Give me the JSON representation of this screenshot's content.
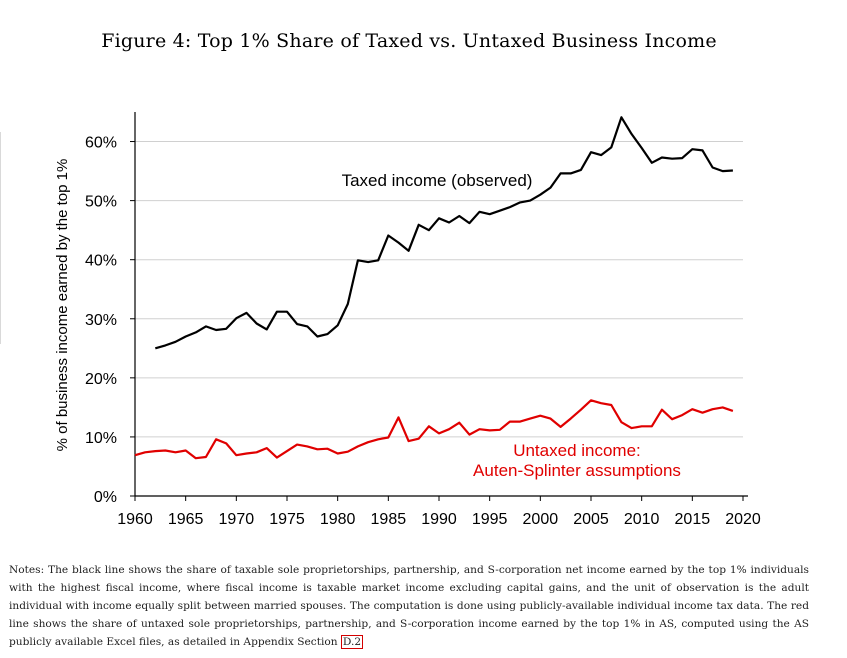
{
  "title": "Figure 4: Top 1% Share of Taxed vs. Untaxed Business Income",
  "notes": {
    "text": "Notes: The black line shows the share of taxable sole proprietorships, partnership, and S-corporation net income earned by the top 1% individuals with the highest fiscal income, where fiscal income is taxable market income excluding capital gains, and the unit of observation is the adult individual with income equally split between married spouses. The computation is done using publicly-available individual income tax data. The red line shows the share of untaxed sole proprietorships, partnership, and S-corporation income earned by the top 1% in AS, computed using the AS publicly available Excel files, as detailed in Appendix Section ",
    "ref": "D.2"
  },
  "chart_data": {
    "type": "line",
    "title": "Figure 4: Top 1% Share of Taxed vs. Untaxed Business Income",
    "xlabel": "",
    "ylabel": "% of business income earned by the top 1%",
    "xlim": [
      1960,
      2020
    ],
    "ylim": [
      0,
      65
    ],
    "xticks": [
      1960,
      1965,
      1970,
      1975,
      1980,
      1985,
      1990,
      1995,
      2000,
      2005,
      2010,
      2015,
      2020
    ],
    "yticks": [
      0,
      10,
      20,
      30,
      40,
      50,
      60
    ],
    "ytick_labels": [
      "0%",
      "10%",
      "20%",
      "30%",
      "40%",
      "50%",
      "60%"
    ],
    "grid": "horizontal",
    "series": [
      {
        "name": "Taxed income (observed)",
        "color": "#000000",
        "label_lines": [
          "Taxed income (observed)"
        ],
        "x": [
          1962,
          1963,
          1964,
          1965,
          1966,
          1967,
          1968,
          1969,
          1970,
          1971,
          1972,
          1973,
          1974,
          1975,
          1976,
          1977,
          1978,
          1979,
          1980,
          1981,
          1982,
          1983,
          1984,
          1985,
          1986,
          1987,
          1988,
          1989,
          1990,
          1991,
          1992,
          1993,
          1994,
          1995,
          1996,
          1997,
          1998,
          1999,
          2000,
          2001,
          2002,
          2003,
          2004,
          2005,
          2006,
          2007,
          2008,
          2009,
          2010,
          2011,
          2012,
          2013,
          2014,
          2015,
          2016,
          2017,
          2018,
          2019
        ],
        "y": [
          25.0,
          25.5,
          26.1,
          27.0,
          27.7,
          28.7,
          28.1,
          28.3,
          30.1,
          31.0,
          29.2,
          28.2,
          31.2,
          31.2,
          29.1,
          28.7,
          27.0,
          27.4,
          28.9,
          32.5,
          39.9,
          39.6,
          39.9,
          44.1,
          42.9,
          41.5,
          45.9,
          45.0,
          47.0,
          46.3,
          47.4,
          46.2,
          48.1,
          47.7,
          48.3,
          48.9,
          49.7,
          50.0,
          51.0,
          52.2,
          54.6,
          54.6,
          55.2,
          58.2,
          57.7,
          59.0,
          64.1,
          61.3,
          58.9,
          56.4,
          57.3,
          57.1,
          57.2,
          58.7,
          58.5,
          55.6,
          55.0,
          55.1
        ]
      },
      {
        "name": "Untaxed income: Auten-Splinter assumptions",
        "color": "#e00000",
        "label_lines": [
          "Untaxed income:",
          "Auten-Splinter assumptions"
        ],
        "x": [
          1960,
          1961,
          1962,
          1963,
          1964,
          1965,
          1966,
          1967,
          1968,
          1969,
          1970,
          1971,
          1972,
          1973,
          1974,
          1975,
          1976,
          1977,
          1978,
          1979,
          1980,
          1981,
          1982,
          1983,
          1984,
          1985,
          1986,
          1987,
          1988,
          1989,
          1990,
          1991,
          1992,
          1993,
          1994,
          1995,
          1996,
          1997,
          1998,
          1999,
          2000,
          2001,
          2002,
          2003,
          2004,
          2005,
          2006,
          2007,
          2008,
          2009,
          2010,
          2011,
          2012,
          2013,
          2014,
          2015,
          2016,
          2017,
          2018,
          2019
        ],
        "y": [
          6.9,
          7.4,
          7.6,
          7.7,
          7.4,
          7.7,
          6.4,
          6.6,
          9.6,
          8.9,
          6.9,
          7.2,
          7.4,
          8.1,
          6.5,
          7.6,
          8.7,
          8.4,
          7.9,
          8.0,
          7.2,
          7.5,
          8.4,
          9.1,
          9.6,
          9.9,
          13.3,
          9.3,
          9.7,
          11.8,
          10.6,
          11.3,
          12.4,
          10.4,
          11.3,
          11.1,
          11.2,
          12.6,
          12.6,
          13.1,
          13.6,
          13.1,
          11.7,
          13.1,
          14.6,
          16.2,
          15.7,
          15.4,
          12.5,
          11.5,
          11.8,
          11.8,
          14.6,
          13.0,
          13.7,
          14.7,
          14.1,
          14.7,
          15.0,
          14.4
        ]
      }
    ]
  }
}
